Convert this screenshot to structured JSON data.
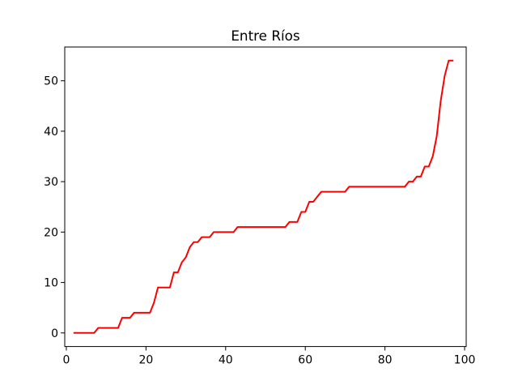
{
  "chart_data": {
    "type": "line",
    "title": "Entre Ríos",
    "xlabel": "",
    "ylabel": "",
    "xlim": [
      -0.4,
      100.4
    ],
    "ylim": [
      -2.7,
      56.7
    ],
    "xticks": [
      0,
      20,
      40,
      60,
      80,
      100
    ],
    "yticks": [
      0,
      10,
      20,
      30,
      40,
      50
    ],
    "grid": false,
    "series": [
      {
        "color": "#ff0000",
        "x": [
          2,
          3,
          4,
          5,
          6,
          7,
          8,
          9,
          10,
          11,
          12,
          13,
          14,
          15,
          16,
          17,
          18,
          19,
          20,
          21,
          22,
          23,
          24,
          25,
          26,
          27,
          28,
          29,
          30,
          31,
          32,
          33,
          34,
          35,
          36,
          37,
          38,
          39,
          40,
          41,
          42,
          43,
          44,
          45,
          46,
          47,
          48,
          49,
          50,
          51,
          52,
          53,
          54,
          55,
          56,
          57,
          58,
          59,
          60,
          61,
          62,
          63,
          64,
          65,
          66,
          67,
          68,
          69,
          70,
          71,
          72,
          73,
          74,
          75,
          76,
          77,
          78,
          79,
          80,
          81,
          82,
          83,
          84,
          85,
          86,
          87,
          88,
          89,
          90,
          91,
          92,
          93,
          94,
          95,
          96,
          97
        ],
        "y": [
          0,
          0,
          0,
          0,
          0,
          0,
          1,
          1,
          1,
          1,
          1,
          1,
          3,
          3,
          3,
          4,
          4,
          4,
          4,
          4,
          6,
          9,
          9,
          9,
          9,
          12,
          12,
          14,
          15,
          17,
          18,
          18,
          19,
          19,
          19,
          20,
          20,
          20,
          20,
          20,
          20,
          21,
          21,
          21,
          21,
          21,
          21,
          21,
          21,
          21,
          21,
          21,
          21,
          21,
          22,
          22,
          22,
          24,
          24,
          26,
          26,
          27,
          28,
          28,
          28,
          28,
          28,
          28,
          28,
          29,
          29,
          29,
          29,
          29,
          29,
          29,
          29,
          29,
          29,
          29,
          29,
          29,
          29,
          29,
          30,
          30,
          31,
          31,
          33,
          33,
          35,
          39,
          46,
          51,
          54,
          54
        ]
      }
    ]
  }
}
